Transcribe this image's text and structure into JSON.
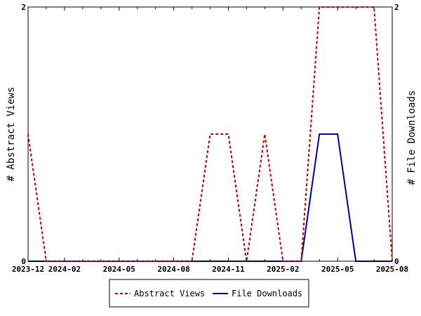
{
  "chart_data": {
    "type": "line",
    "title": "",
    "ylabel_left": "# Abstract Views",
    "ylabel_right": "# File Downloads",
    "y_ticks_left": [
      "0",
      "2"
    ],
    "y_ticks_right": [
      "0",
      "2"
    ],
    "ylim": [
      0,
      2
    ],
    "x_tick_labels": [
      "2023-12",
      "2024-02",
      "2024-05",
      "2024-08",
      "2024-11",
      "2025-02",
      "2025-05",
      "2025-08"
    ],
    "x": [
      "2023-12",
      "2024-01",
      "2024-02",
      "2024-03",
      "2024-04",
      "2024-05",
      "2024-06",
      "2024-07",
      "2024-08",
      "2024-09",
      "2024-10",
      "2024-11",
      "2024-12",
      "2025-01",
      "2025-02",
      "2025-03",
      "2025-04",
      "2025-05",
      "2025-06",
      "2025-07",
      "2025-08"
    ],
    "series": [
      {
        "name": "Abstract Views",
        "axis": "left",
        "color": "#cc0000",
        "dash": "dashed",
        "values": [
          1,
          0,
          0,
          0,
          0,
          0,
          0,
          0,
          0,
          0,
          1,
          1,
          0,
          1,
          0,
          0,
          2,
          2,
          2,
          2,
          0
        ]
      },
      {
        "name": "File Downloads",
        "axis": "right",
        "color": "#0000aa",
        "dash": "solid",
        "values": [
          0,
          0,
          0,
          0,
          0,
          0,
          0,
          0,
          0,
          0,
          0,
          0,
          0,
          0,
          0,
          0,
          1,
          1,
          0,
          0,
          0
        ]
      }
    ],
    "legend": {
      "placement": "bottom",
      "entries": [
        "Abstract Views",
        "File Downloads"
      ]
    },
    "grid": false
  }
}
